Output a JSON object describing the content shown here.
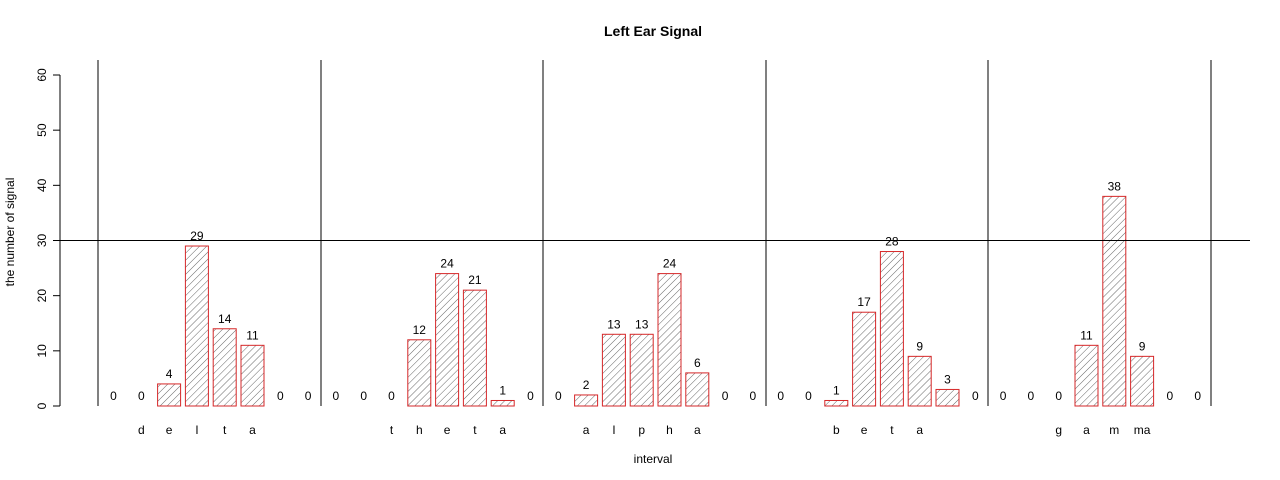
{
  "chart_data": {
    "type": "bar",
    "title": "Left Ear Signal",
    "xlabel": "interval",
    "ylabel": "the number of signal",
    "ylim": [
      0,
      60
    ],
    "yticks": [
      0,
      10,
      20,
      30,
      40,
      50,
      60
    ],
    "reference_line_y": 30,
    "groups": [
      {
        "name": "delta",
        "bar_labels": [
          "",
          "d",
          "e",
          "l",
          "t",
          "a",
          "",
          ""
        ],
        "values": [
          0,
          0,
          4,
          29,
          14,
          11,
          0,
          0
        ]
      },
      {
        "name": "theta",
        "bar_labels": [
          "",
          "",
          "t",
          "h",
          "e",
          "t",
          "a",
          ""
        ],
        "values": [
          0,
          0,
          0,
          12,
          24,
          21,
          1,
          0
        ]
      },
      {
        "name": "alpha",
        "bar_labels": [
          "",
          "a",
          "l",
          "p",
          "h",
          "a",
          "",
          ""
        ],
        "values": [
          0,
          2,
          13,
          13,
          24,
          6,
          0,
          0
        ]
      },
      {
        "name": "beta",
        "bar_labels": [
          "",
          "",
          "b",
          "e",
          "t",
          "a",
          "",
          ""
        ],
        "values": [
          0,
          0,
          1,
          17,
          28,
          9,
          3,
          0
        ]
      },
      {
        "name": "gamma",
        "bar_labels": [
          "",
          "",
          "g",
          "a",
          "m",
          "ma",
          "",
          ""
        ],
        "values": [
          0,
          0,
          0,
          11,
          38,
          9,
          0,
          0
        ]
      }
    ],
    "colors": {
      "bar_border": "#d62728",
      "hatch": "#555555",
      "lines": "#000000"
    },
    "grid": false,
    "legend": "none"
  }
}
